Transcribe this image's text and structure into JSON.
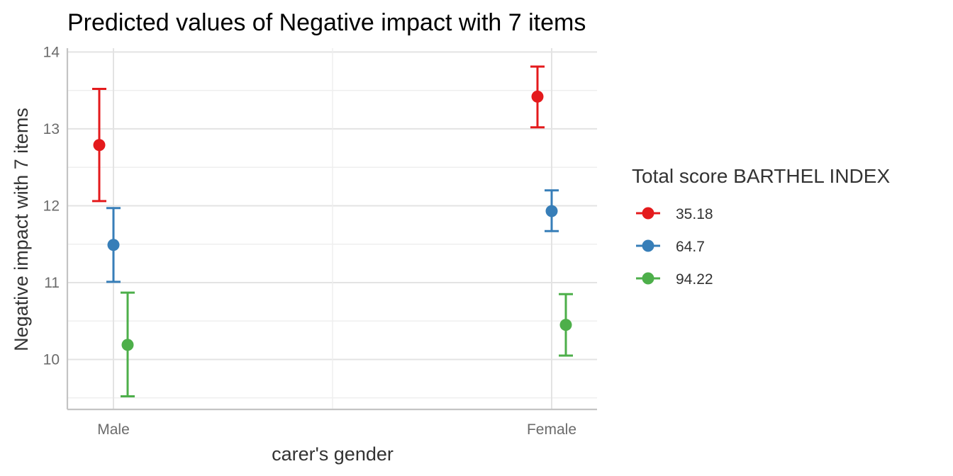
{
  "chart_data": {
    "type": "scatter",
    "title": "Predicted values of Negative impact with 7 items",
    "xlabel": "carer's gender",
    "ylabel": "Negative impact with 7 items",
    "categories": [
      "Male",
      "Female"
    ],
    "ylim": [
      9.35,
      14.05
    ],
    "yticks": [
      10,
      11,
      12,
      13,
      14
    ],
    "grid": true,
    "legend": {
      "title": "Total score BARTHEL INDEX",
      "position": "right"
    },
    "series": [
      {
        "name": "35.18",
        "color": "#e41a1c",
        "values": [
          12.79,
          13.42
        ],
        "lower": [
          12.06,
          13.02
        ],
        "upper": [
          13.52,
          13.81
        ]
      },
      {
        "name": "64.7",
        "color": "#377eb8",
        "values": [
          11.49,
          11.93
        ],
        "lower": [
          11.01,
          11.67
        ],
        "upper": [
          11.97,
          12.2
        ]
      },
      {
        "name": "94.22",
        "color": "#4daf4a",
        "values": [
          10.19,
          10.45
        ],
        "lower": [
          9.52,
          10.05
        ],
        "upper": [
          10.87,
          10.85
        ]
      }
    ]
  }
}
